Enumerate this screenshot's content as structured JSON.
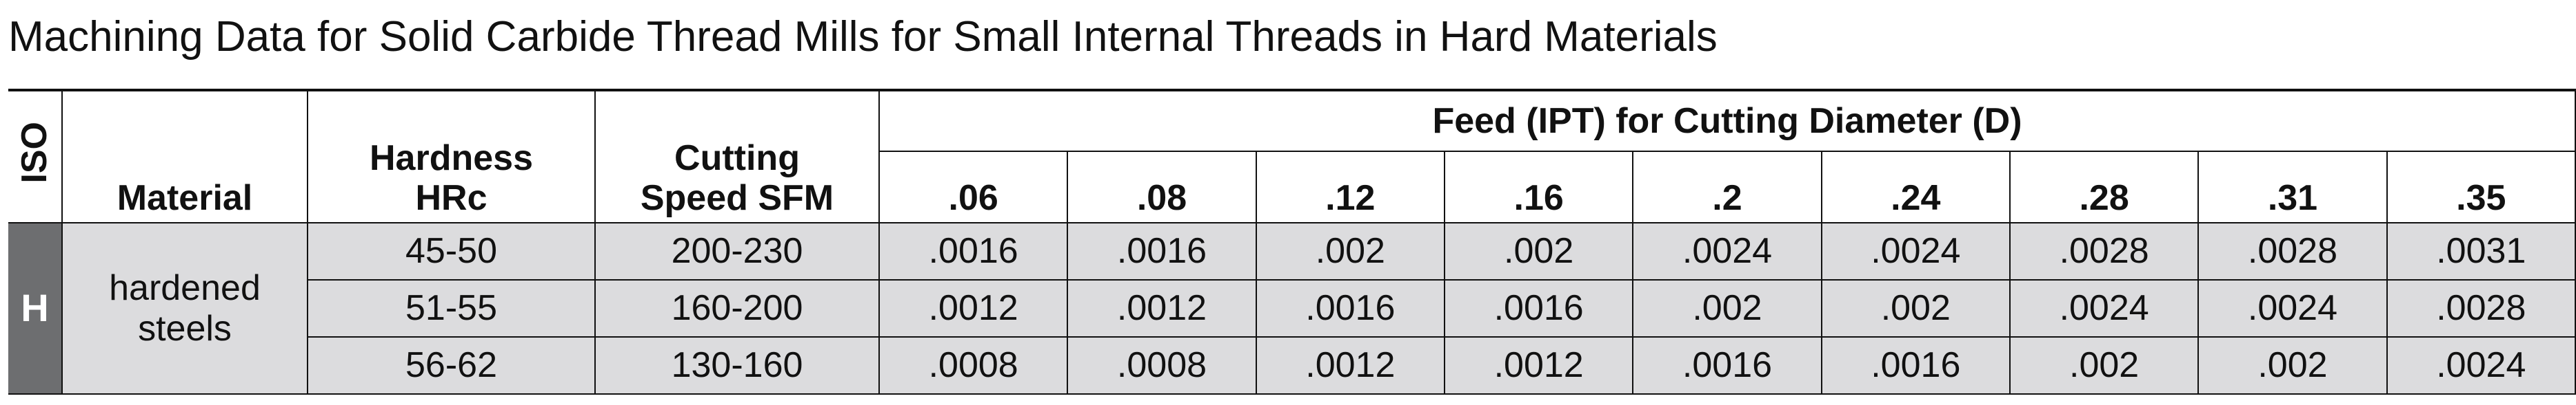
{
  "title": "Machining Data for Solid Carbide Thread Mills for Small Internal Threads in Hard Materials",
  "table": {
    "iso_header": "ISO",
    "material_header": "Material",
    "hardness_header": [
      "Hardness",
      "HRc"
    ],
    "speed_header": [
      "Cutting",
      "Speed SFM"
    ],
    "feed_header": "Feed (IPT) for Cutting Diameter (D)",
    "diameters": [
      ".06",
      ".08",
      ".12",
      ".16",
      ".2",
      ".24",
      ".28",
      ".31",
      ".35"
    ],
    "iso": "H",
    "material": [
      "hardened",
      "steels"
    ],
    "rows": [
      {
        "hardness": "45-50",
        "speed": "200-230",
        "feeds": [
          ".0016",
          ".0016",
          ".002",
          ".002",
          ".0024",
          ".0024",
          ".0028",
          ".0028",
          ".0031"
        ]
      },
      {
        "hardness": "51-55",
        "speed": "160-200",
        "feeds": [
          ".0012",
          ".0012",
          ".0016",
          ".0016",
          ".002",
          ".002",
          ".0024",
          ".0024",
          ".0028"
        ]
      },
      {
        "hardness": "56-62",
        "speed": "130-160",
        "feeds": [
          ".0008",
          ".0008",
          ".0012",
          ".0012",
          ".0016",
          ".0016",
          ".002",
          ".002",
          ".0024"
        ]
      }
    ]
  }
}
